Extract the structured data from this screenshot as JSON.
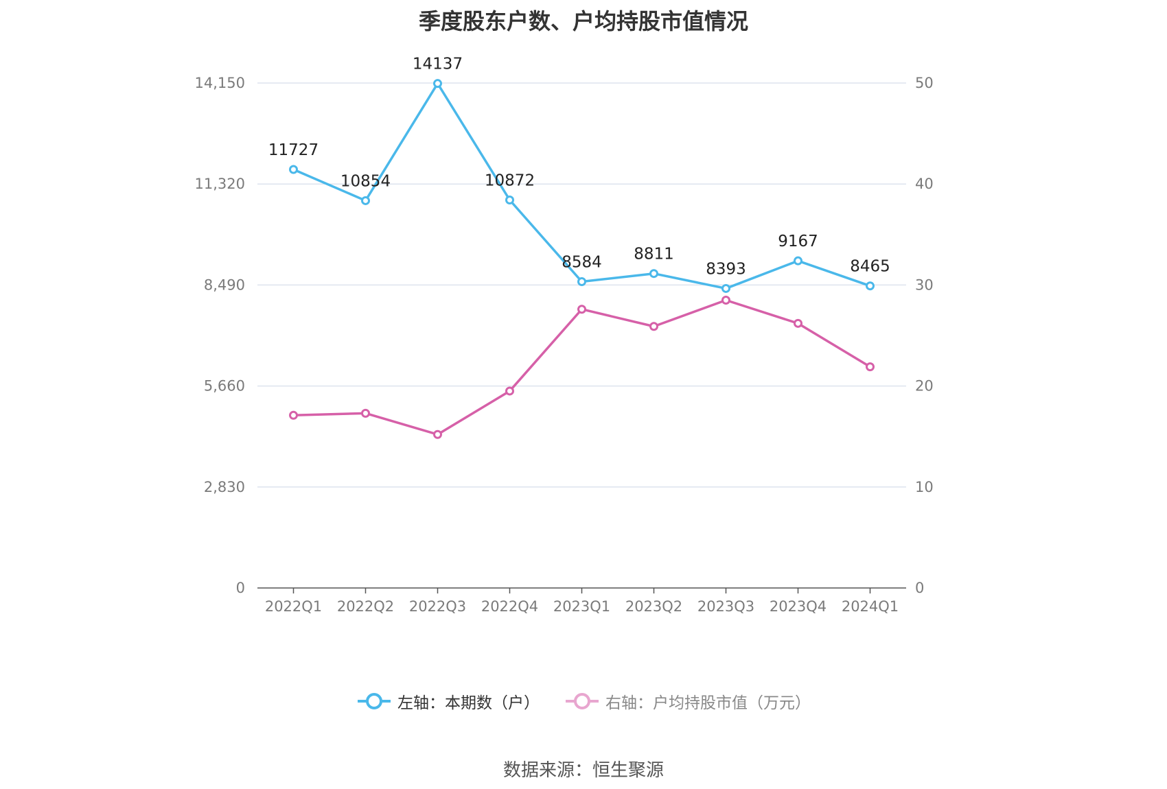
{
  "chart_data": {
    "type": "line",
    "title": "季度股东户数、户均持股市值情况",
    "categories": [
      "2022Q1",
      "2022Q2",
      "2022Q3",
      "2022Q4",
      "2023Q1",
      "2023Q2",
      "2023Q3",
      "2023Q4",
      "2024Q1"
    ],
    "left_axis": {
      "ticks": [
        "0",
        "2,830",
        "5,660",
        "8,490",
        "11,320",
        "14,150"
      ],
      "range": [
        0,
        14150
      ]
    },
    "right_axis": {
      "ticks": [
        "0",
        "10",
        "20",
        "30",
        "40",
        "50"
      ],
      "range": [
        0,
        50
      ]
    },
    "grid": true,
    "legend_position": "bottom",
    "series": [
      {
        "name": "左轴：本期数（户）",
        "axis": "left",
        "color": "#4ab8ea",
        "values": [
          11727,
          10854,
          14137,
          10872,
          8584,
          8811,
          8393,
          9167,
          8465
        ],
        "labels": [
          "11727",
          "10854",
          "14137",
          "10872",
          "8584",
          "8811",
          "8393",
          "9167",
          "8465"
        ]
      },
      {
        "name": "右轴：户均持股市值（万元）",
        "axis": "right",
        "color": "#d660a8",
        "values": [
          17.1,
          17.3,
          15.2,
          19.5,
          27.6,
          25.9,
          28.5,
          26.2,
          21.9
        ]
      }
    ]
  },
  "source_note": "数据来源：恒生聚源"
}
